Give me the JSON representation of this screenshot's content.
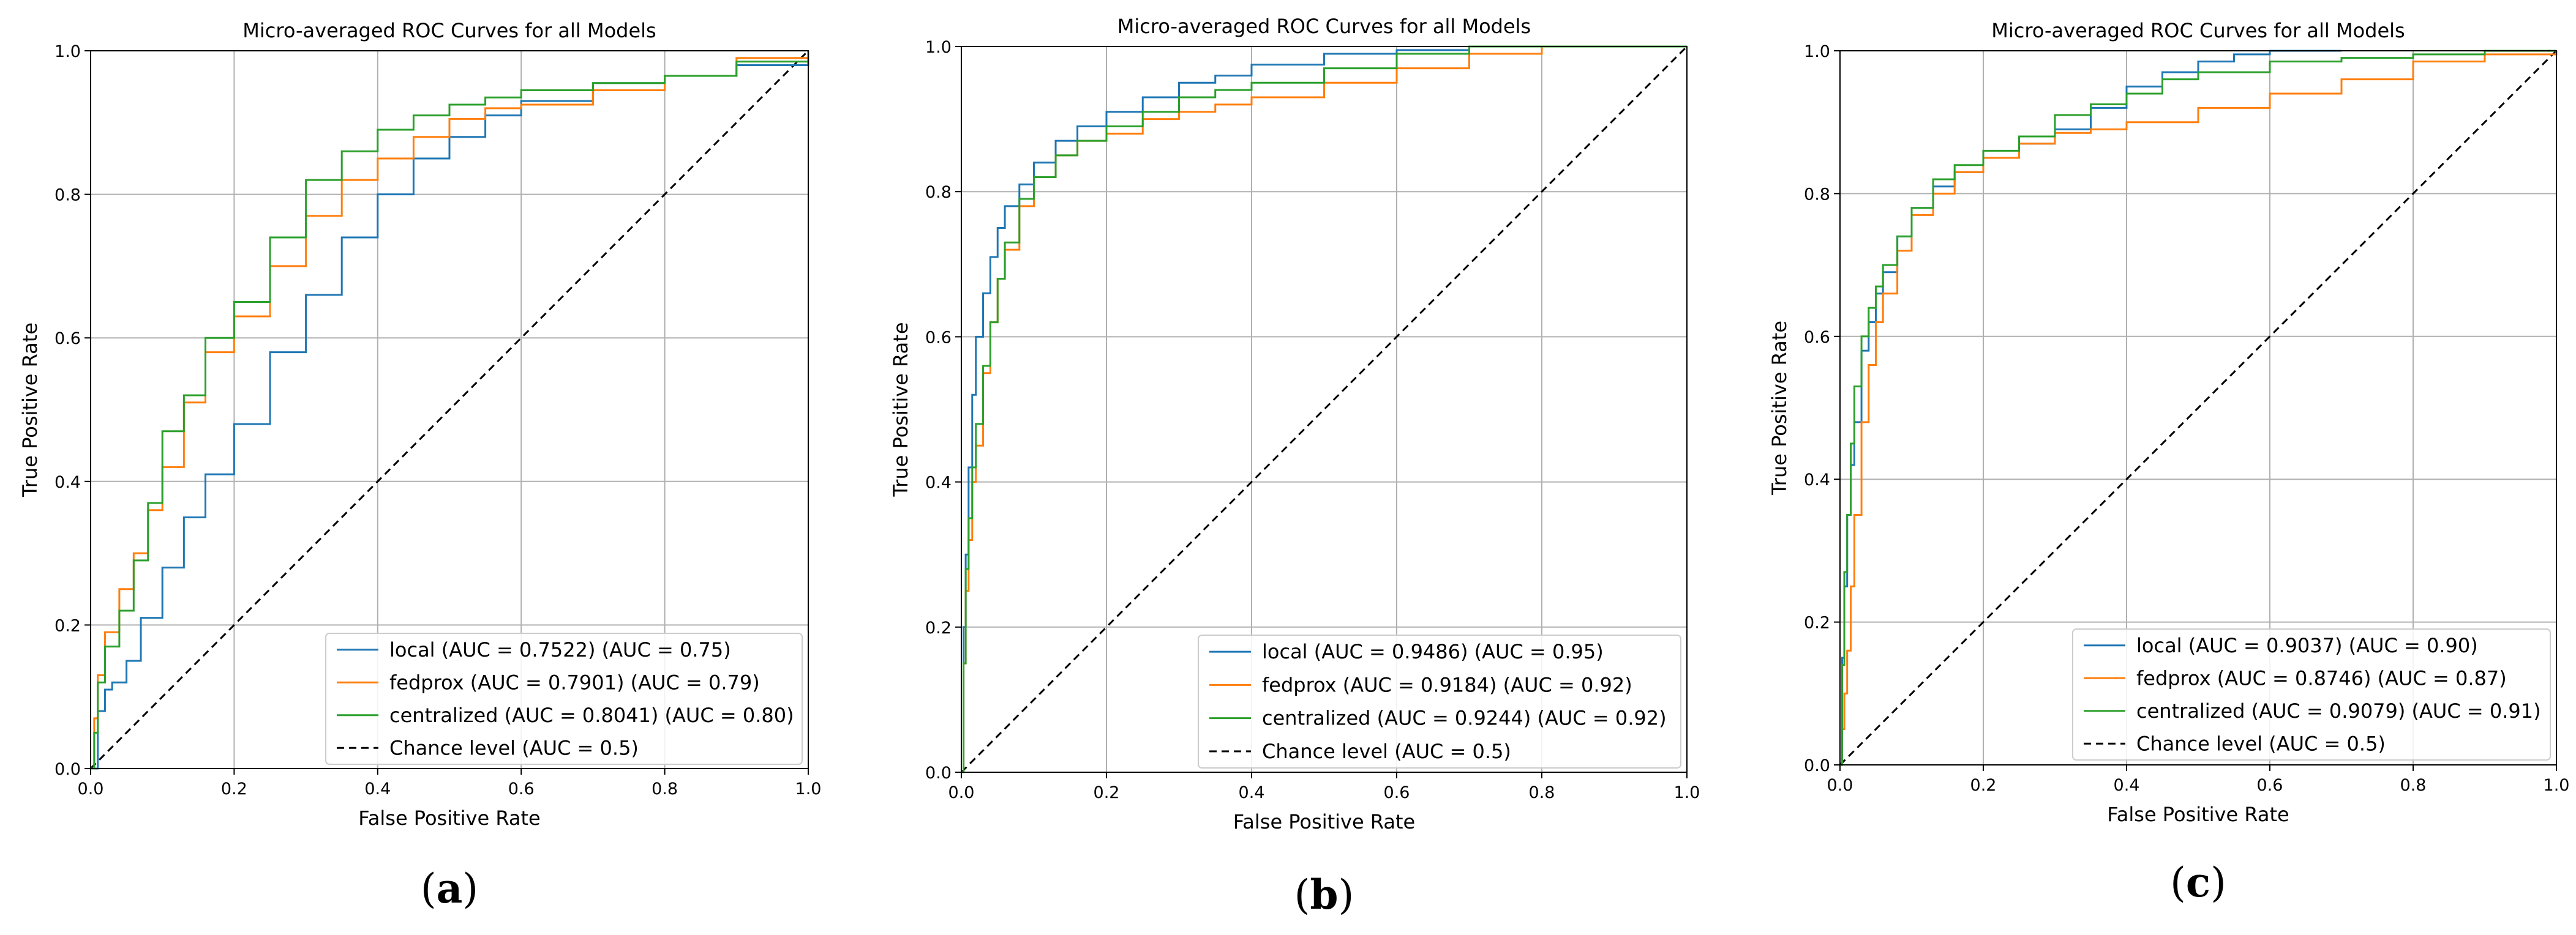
{
  "chart_data": [
    {
      "type": "line",
      "panel_label": "a",
      "title": "Micro-averaged ROC Curves for all Models",
      "xlabel": "False Positive Rate",
      "ylabel": "True Positive Rate",
      "xlim": [
        0,
        1
      ],
      "ylim": [
        0,
        1
      ],
      "grid": true,
      "legend_position": "lower-right",
      "xticks": [
        0.0,
        0.2,
        0.4,
        0.6,
        0.8,
        1.0
      ],
      "yticks": [
        0.0,
        0.2,
        0.4,
        0.6,
        0.8,
        1.0
      ],
      "xtick_labels": [
        "0.0",
        "0.2",
        "0.4",
        "0.6",
        "0.8",
        "1.0"
      ],
      "ytick_labels": [
        "0.0",
        "0.2",
        "0.4",
        "0.6",
        "0.8",
        "1.0"
      ],
      "series": [
        {
          "name": "local",
          "legend_label": "local (AUC = 0.7522) (AUC = 0.75)",
          "color": "#1f77b4",
          "dash": "",
          "x": [
            0,
            0.01,
            0.02,
            0.03,
            0.05,
            0.07,
            0.1,
            0.13,
            0.16,
            0.2,
            0.25,
            0.3,
            0.35,
            0.4,
            0.45,
            0.5,
            0.55,
            0.6,
            0.7,
            0.8,
            0.9,
            1.0
          ],
          "y": [
            0,
            0.08,
            0.11,
            0.12,
            0.15,
            0.21,
            0.28,
            0.35,
            0.41,
            0.48,
            0.58,
            0.66,
            0.74,
            0.8,
            0.85,
            0.88,
            0.91,
            0.93,
            0.955,
            0.965,
            0.98,
            1.0
          ]
        },
        {
          "name": "fedprox",
          "legend_label": "fedprox (AUC = 0.7901) (AUC = 0.79)",
          "color": "#ff7f0e",
          "dash": "",
          "x": [
            0,
            0.005,
            0.01,
            0.02,
            0.04,
            0.06,
            0.08,
            0.1,
            0.13,
            0.16,
            0.2,
            0.25,
            0.3,
            0.35,
            0.4,
            0.45,
            0.5,
            0.55,
            0.6,
            0.7,
            0.8,
            0.9,
            1.0
          ],
          "y": [
            0,
            0.07,
            0.13,
            0.19,
            0.25,
            0.3,
            0.36,
            0.42,
            0.51,
            0.58,
            0.63,
            0.7,
            0.77,
            0.82,
            0.85,
            0.88,
            0.905,
            0.92,
            0.925,
            0.945,
            0.965,
            0.99,
            1.0
          ]
        },
        {
          "name": "centralized",
          "legend_label": "centralized (AUC = 0.8041) (AUC = 0.80)",
          "color": "#2ca02c",
          "dash": "",
          "x": [
            0,
            0.005,
            0.01,
            0.02,
            0.04,
            0.06,
            0.08,
            0.1,
            0.13,
            0.16,
            0.2,
            0.25,
            0.3,
            0.35,
            0.4,
            0.45,
            0.5,
            0.55,
            0.6,
            0.7,
            0.8,
            0.9,
            1.0
          ],
          "y": [
            0,
            0.05,
            0.12,
            0.17,
            0.22,
            0.29,
            0.37,
            0.47,
            0.52,
            0.6,
            0.65,
            0.74,
            0.82,
            0.86,
            0.89,
            0.91,
            0.925,
            0.935,
            0.945,
            0.955,
            0.965,
            0.985,
            1.0
          ]
        },
        {
          "name": "chance",
          "legend_label": "Chance level (AUC = 0.5)",
          "color": "#000000",
          "dash": "12,8",
          "x": [
            0,
            1
          ],
          "y": [
            0,
            1
          ]
        }
      ]
    },
    {
      "type": "line",
      "panel_label": "b",
      "title": "Micro-averaged ROC Curves for all Models",
      "xlabel": "False Positive Rate",
      "ylabel": "True Positive Rate",
      "xlim": [
        0,
        1
      ],
      "ylim": [
        0,
        1
      ],
      "grid": true,
      "legend_position": "lower-right",
      "xticks": [
        0.0,
        0.2,
        0.4,
        0.6,
        0.8,
        1.0
      ],
      "yticks": [
        0.0,
        0.2,
        0.4,
        0.6,
        0.8,
        1.0
      ],
      "xtick_labels": [
        "0.0",
        "0.2",
        "0.4",
        "0.6",
        "0.8",
        "1.0"
      ],
      "ytick_labels": [
        "0.0",
        "0.2",
        "0.4",
        "0.6",
        "0.8",
        "1.0"
      ],
      "series": [
        {
          "name": "local",
          "legend_label": "local (AUC = 0.9486) (AUC = 0.95)",
          "color": "#1f77b4",
          "dash": "",
          "x": [
            0,
            0.003,
            0.006,
            0.01,
            0.015,
            0.02,
            0.03,
            0.04,
            0.05,
            0.06,
            0.08,
            0.1,
            0.13,
            0.16,
            0.2,
            0.25,
            0.3,
            0.35,
            0.4,
            0.5,
            0.6,
            0.7,
            0.8,
            0.9,
            1.0
          ],
          "y": [
            0,
            0.2,
            0.3,
            0.42,
            0.52,
            0.6,
            0.66,
            0.71,
            0.75,
            0.78,
            0.81,
            0.84,
            0.87,
            0.89,
            0.91,
            0.93,
            0.95,
            0.96,
            0.975,
            0.99,
            0.995,
            1.0,
            1.0,
            1.0,
            1.0
          ]
        },
        {
          "name": "fedprox",
          "legend_label": "fedprox (AUC = 0.9184) (AUC = 0.92)",
          "color": "#ff7f0e",
          "dash": "",
          "x": [
            0,
            0.003,
            0.006,
            0.01,
            0.015,
            0.02,
            0.03,
            0.04,
            0.05,
            0.06,
            0.08,
            0.1,
            0.13,
            0.16,
            0.2,
            0.25,
            0.3,
            0.35,
            0.4,
            0.5,
            0.6,
            0.7,
            0.8,
            0.9,
            1.0
          ],
          "y": [
            0,
            0.15,
            0.25,
            0.32,
            0.4,
            0.45,
            0.55,
            0.62,
            0.68,
            0.72,
            0.78,
            0.82,
            0.85,
            0.87,
            0.88,
            0.9,
            0.91,
            0.92,
            0.93,
            0.95,
            0.97,
            0.99,
            1.0,
            1.0,
            1.0
          ]
        },
        {
          "name": "centralized",
          "legend_label": "centralized (AUC = 0.9244) (AUC = 0.92)",
          "color": "#2ca02c",
          "dash": "",
          "x": [
            0,
            0.003,
            0.006,
            0.01,
            0.015,
            0.02,
            0.03,
            0.04,
            0.05,
            0.06,
            0.08,
            0.1,
            0.13,
            0.16,
            0.2,
            0.25,
            0.3,
            0.35,
            0.4,
            0.5,
            0.6,
            0.7,
            0.8,
            0.9,
            1.0
          ],
          "y": [
            0,
            0.15,
            0.28,
            0.35,
            0.42,
            0.48,
            0.56,
            0.62,
            0.68,
            0.73,
            0.79,
            0.82,
            0.85,
            0.87,
            0.89,
            0.91,
            0.93,
            0.94,
            0.95,
            0.97,
            0.99,
            1.0,
            1.0,
            1.0,
            1.0
          ]
        },
        {
          "name": "chance",
          "legend_label": "Chance level (AUC = 0.5)",
          "color": "#000000",
          "dash": "12,8",
          "x": [
            0,
            1
          ],
          "y": [
            0,
            1
          ]
        }
      ]
    },
    {
      "type": "line",
      "panel_label": "c",
      "title": "Micro-averaged ROC Curves for all Models",
      "xlabel": "False Positive Rate",
      "ylabel": "True Positive Rate",
      "xlim": [
        0,
        1
      ],
      "ylim": [
        0,
        1
      ],
      "grid": true,
      "legend_position": "lower-right",
      "xticks": [
        0.0,
        0.2,
        0.4,
        0.6,
        0.8,
        1.0
      ],
      "yticks": [
        0.0,
        0.2,
        0.4,
        0.6,
        0.8,
        1.0
      ],
      "xtick_labels": [
        "0.0",
        "0.2",
        "0.4",
        "0.6",
        "0.8",
        "1.0"
      ],
      "ytick_labels": [
        "0.0",
        "0.2",
        "0.4",
        "0.6",
        "0.8",
        "1.0"
      ],
      "series": [
        {
          "name": "local",
          "legend_label": "local (AUC = 0.9037) (AUC = 0.90)",
          "color": "#1f77b4",
          "dash": "",
          "x": [
            0,
            0.003,
            0.006,
            0.01,
            0.015,
            0.02,
            0.03,
            0.04,
            0.05,
            0.06,
            0.08,
            0.1,
            0.13,
            0.16,
            0.2,
            0.25,
            0.3,
            0.35,
            0.4,
            0.45,
            0.5,
            0.55,
            0.6,
            0.7
          ],
          "y": [
            0,
            0.15,
            0.25,
            0.35,
            0.42,
            0.48,
            0.58,
            0.62,
            0.66,
            0.69,
            0.74,
            0.78,
            0.81,
            0.83,
            0.85,
            0.87,
            0.89,
            0.92,
            0.95,
            0.97,
            0.985,
            0.995,
            1.0,
            1.0
          ]
        },
        {
          "name": "fedprox",
          "legend_label": "fedprox (AUC = 0.8746) (AUC = 0.87)",
          "color": "#ff7f0e",
          "dash": "",
          "x": [
            0,
            0.003,
            0.006,
            0.01,
            0.015,
            0.02,
            0.03,
            0.04,
            0.05,
            0.06,
            0.08,
            0.1,
            0.13,
            0.16,
            0.2,
            0.25,
            0.3,
            0.35,
            0.4,
            0.5,
            0.6,
            0.7,
            0.8,
            0.9,
            1.0
          ],
          "y": [
            0,
            0.05,
            0.1,
            0.16,
            0.25,
            0.35,
            0.48,
            0.56,
            0.62,
            0.66,
            0.72,
            0.77,
            0.8,
            0.83,
            0.85,
            0.87,
            0.885,
            0.89,
            0.9,
            0.92,
            0.94,
            0.96,
            0.985,
            0.995,
            1.0
          ]
        },
        {
          "name": "centralized",
          "legend_label": "centralized (AUC = 0.9079) (AUC = 0.91)",
          "color": "#2ca02c",
          "dash": "",
          "x": [
            0,
            0.003,
            0.006,
            0.01,
            0.015,
            0.02,
            0.03,
            0.04,
            0.05,
            0.06,
            0.08,
            0.1,
            0.13,
            0.16,
            0.2,
            0.25,
            0.3,
            0.35,
            0.4,
            0.45,
            0.5,
            0.6,
            0.7,
            0.8,
            0.9,
            1.0
          ],
          "y": [
            0,
            0.14,
            0.27,
            0.35,
            0.45,
            0.53,
            0.6,
            0.64,
            0.67,
            0.7,
            0.74,
            0.78,
            0.82,
            0.84,
            0.86,
            0.88,
            0.91,
            0.925,
            0.94,
            0.96,
            0.97,
            0.985,
            0.99,
            0.995,
            1.0,
            1.0
          ]
        },
        {
          "name": "chance",
          "legend_label": "Chance level (AUC = 0.5)",
          "color": "#000000",
          "dash": "12,8",
          "x": [
            0,
            1
          ],
          "y": [
            0,
            1
          ]
        }
      ]
    }
  ]
}
